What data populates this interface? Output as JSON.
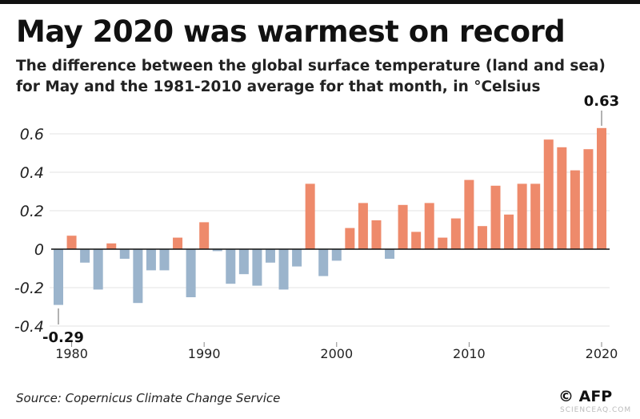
{
  "title": "May 2020 was warmest on record",
  "subtitle_line1": "The difference between the global surface temperature (land and sea)",
  "subtitle_line2": "for May and the 1981-2010 average for that month, in °Celsius",
  "source": "Source: Copernicus Climate Change Service",
  "credit": "© AFP",
  "watermark": "SCIENCEAQ.COM",
  "colors": {
    "positive": "#ee8a6b",
    "negative": "#9bb4cc",
    "grid": "#e3e3e3",
    "axis": "#111"
  },
  "chart_data": {
    "type": "bar",
    "title": "May 2020 was warmest on record",
    "xlabel": "",
    "ylabel": "",
    "ylim": [
      -0.45,
      0.65
    ],
    "yticks": [
      -0.4,
      -0.2,
      0,
      0.2,
      0.4,
      0.6
    ],
    "ytick_labels": [
      "-0.4",
      "-0.2",
      "0",
      "0.2",
      "0.4",
      "0.6"
    ],
    "xtick_labels": [
      "1980",
      "1990",
      "2000",
      "2010",
      "2020"
    ],
    "grid": true,
    "categories": [
      1979,
      1980,
      1981,
      1982,
      1983,
      1984,
      1985,
      1986,
      1987,
      1988,
      1989,
      1990,
      1991,
      1992,
      1993,
      1994,
      1995,
      1996,
      1997,
      1998,
      1999,
      2000,
      2001,
      2002,
      2003,
      2004,
      2005,
      2006,
      2007,
      2008,
      2009,
      2010,
      2011,
      2012,
      2013,
      2014,
      2015,
      2016,
      2017,
      2018,
      2019,
      2020
    ],
    "values": [
      -0.29,
      0.07,
      -0.07,
      -0.21,
      0.03,
      -0.05,
      -0.28,
      -0.11,
      -0.11,
      0.06,
      -0.25,
      0.14,
      -0.01,
      -0.18,
      -0.13,
      -0.19,
      -0.07,
      -0.21,
      -0.09,
      0.34,
      -0.14,
      -0.06,
      0.11,
      0.24,
      0.15,
      -0.05,
      0.23,
      0.09,
      0.24,
      0.06,
      0.16,
      0.36,
      0.12,
      0.33,
      0.18,
      0.34,
      0.34,
      0.57,
      0.53,
      0.41,
      0.52,
      0.63
    ],
    "annotations": [
      {
        "year": 1979,
        "label": "-0.29"
      },
      {
        "year": 2020,
        "label": "0.63"
      }
    ]
  }
}
